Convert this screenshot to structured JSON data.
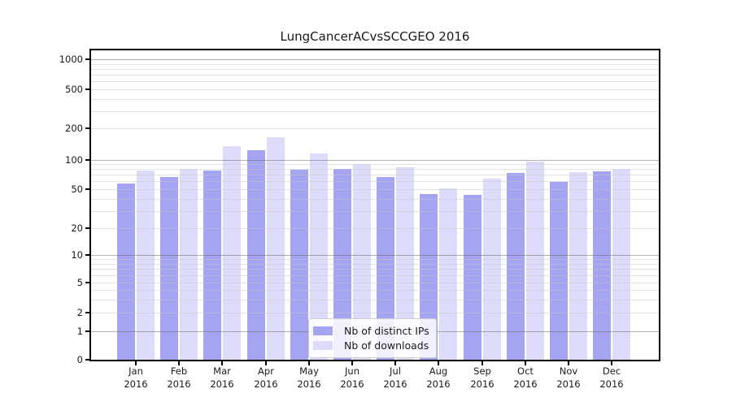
{
  "chart_data": {
    "type": "bar",
    "title": "LungCancerACvsSCCGEO 2016",
    "categories": [
      "Jan",
      "Feb",
      "Mar",
      "Apr",
      "May",
      "Jun",
      "Jul",
      "Aug",
      "Sep",
      "Oct",
      "Nov",
      "Dec"
    ],
    "year_label": "2016",
    "series": [
      {
        "name": "Nb of distinct IPs",
        "color": "#a4a4f2",
        "values": [
          57,
          67,
          78,
          122,
          79,
          80,
          66,
          45,
          44,
          73,
          59,
          76
        ]
      },
      {
        "name": "Nb of downloads",
        "color": "#dcdcfa",
        "values": [
          78,
          80,
          135,
          163,
          114,
          90,
          83,
          51,
          64,
          95,
          74,
          81
        ]
      }
    ],
    "xlabel": "",
    "ylabel": "",
    "yaxis": {
      "scale": "symlog (log above 1, linear 0-1)",
      "tick_values": [
        0,
        1,
        2,
        5,
        10,
        20,
        50,
        100,
        200,
        500,
        1000
      ],
      "ylim": [
        0,
        1260
      ]
    },
    "legend": {
      "position": "inside bottom-center",
      "entries": [
        "Nb of distinct IPs",
        "Nb of downloads"
      ]
    },
    "grid": {
      "horizontal": true,
      "major_lines_at": [
        1,
        10,
        100,
        1000
      ],
      "minor_lines": true,
      "major_color": "#8c8c8c",
      "minor_color": "#e3e3e3"
    },
    "axis_color": "#000000",
    "background_color": "#ffffff"
  }
}
